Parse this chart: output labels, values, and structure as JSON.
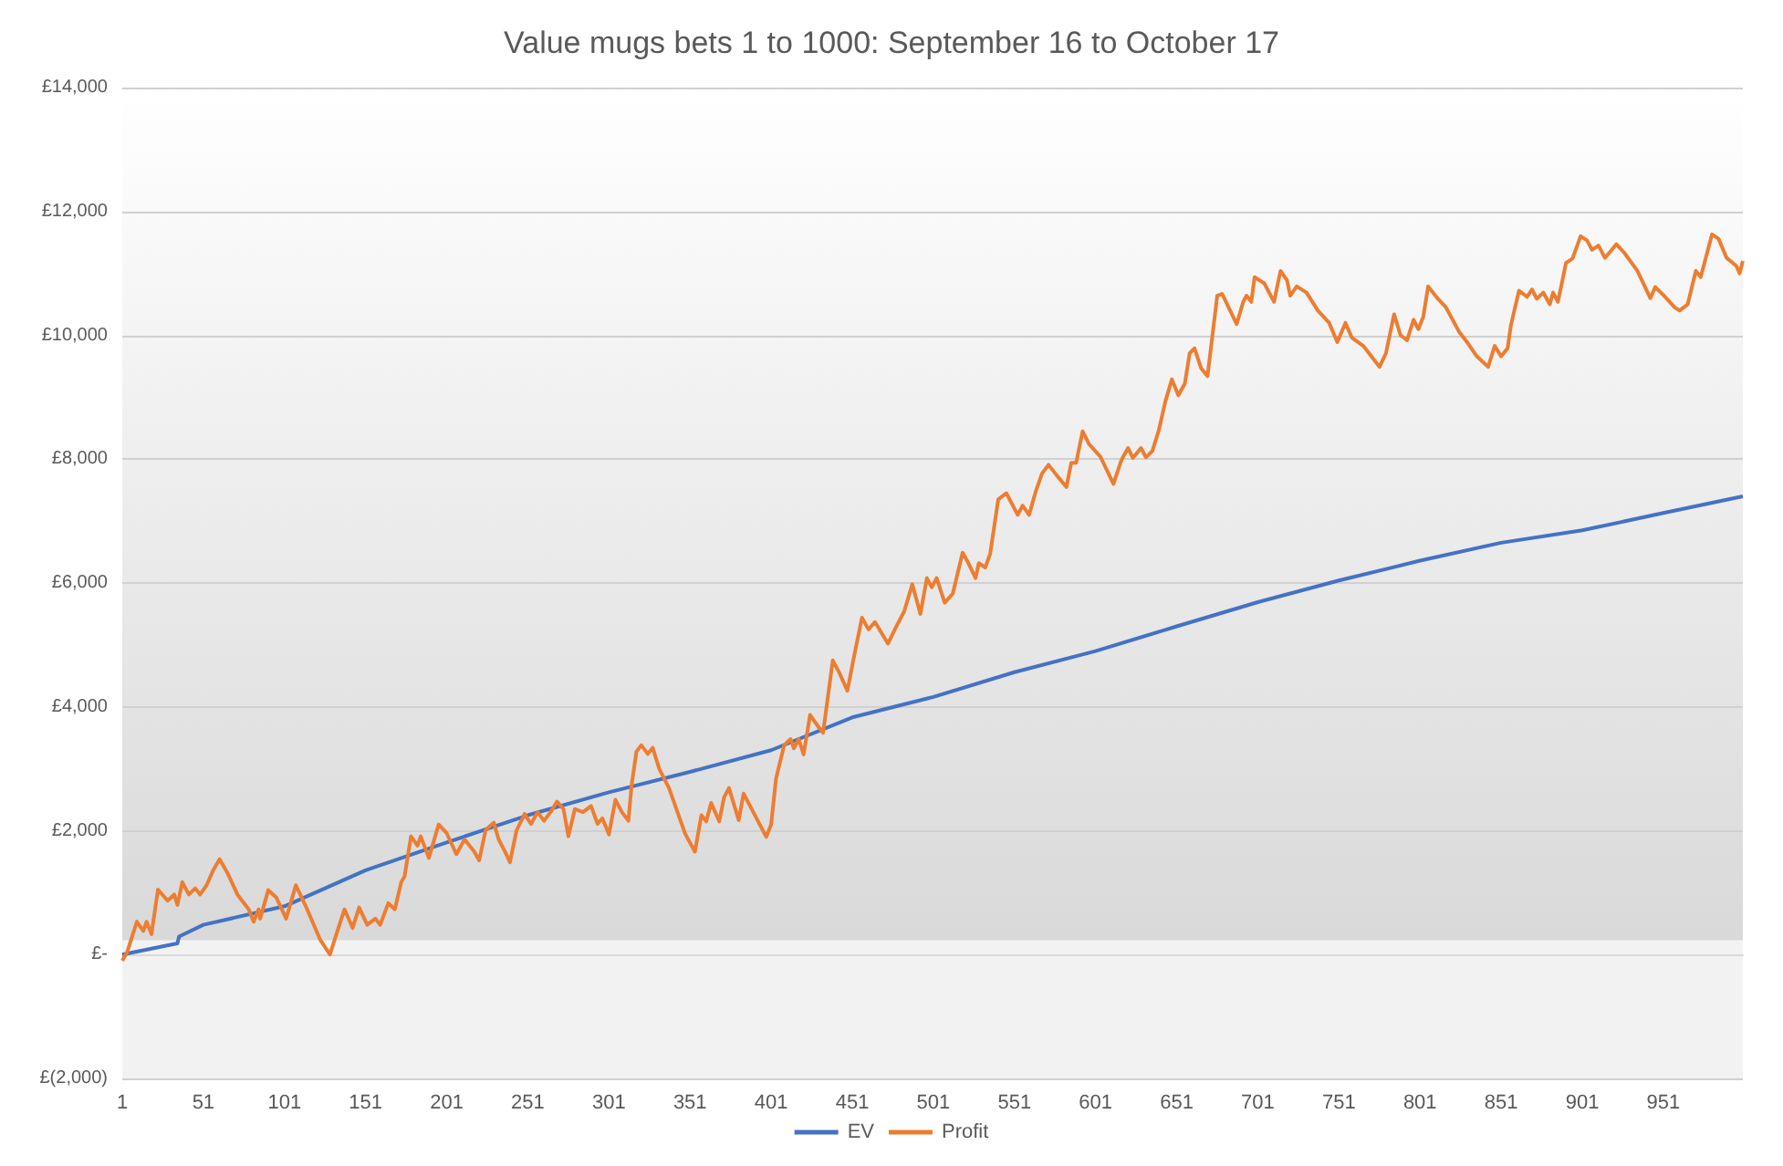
{
  "chart_data": {
    "type": "line",
    "title": "Value mugs bets 1 to 1000: September 16 to October 17",
    "xlim": [
      1,
      1000
    ],
    "xticks": [
      1,
      51,
      101,
      151,
      201,
      251,
      301,
      351,
      401,
      451,
      501,
      551,
      601,
      651,
      701,
      751,
      801,
      851,
      901,
      951
    ],
    "ylim": [
      -2000,
      14000
    ],
    "yticks": [
      {
        "value": -2000,
        "label": "£(2,000)"
      },
      {
        "value": 0,
        "label": "£-"
      },
      {
        "value": 2000,
        "label": "£2,000"
      },
      {
        "value": 4000,
        "label": "£4,000"
      },
      {
        "value": 6000,
        "label": "£6,000"
      },
      {
        "value": 8000,
        "label": "£8,000"
      },
      {
        "value": 10000,
        "label": "£10,000"
      },
      {
        "value": 12000,
        "label": "£12,000"
      },
      {
        "value": 14000,
        "label": "£14,000"
      }
    ],
    "grid": "y",
    "legend": "bottom",
    "marker": "none",
    "line_style": "solid",
    "series": [
      {
        "name": "EV",
        "color": "#4472c4",
        "x": [
          1,
          35,
          36,
          51,
          101,
          151,
          201,
          251,
          301,
          351,
          401,
          451,
          501,
          551,
          601,
          651,
          701,
          751,
          801,
          851,
          901,
          951,
          1000
        ],
        "values": [
          0,
          180,
          290,
          480,
          780,
          1360,
          1810,
          2250,
          2620,
          2950,
          3300,
          3830,
          4160,
          4560,
          4900,
          5300,
          5690,
          6040,
          6360,
          6650,
          6850,
          7130,
          7400
        ]
      },
      {
        "name": "Profit",
        "color": "#ed7d31",
        "x": [
          1,
          4,
          10,
          14,
          16,
          19,
          23,
          29,
          33,
          35,
          38,
          42,
          46,
          49,
          53,
          57,
          61,
          66,
          72,
          79,
          82,
          85,
          86,
          91,
          96,
          102,
          108,
          115,
          123,
          129,
          133,
          138,
          143,
          147,
          152,
          157,
          160,
          165,
          169,
          173,
          175,
          179,
          183,
          185,
          190,
          196,
          201,
          207,
          212,
          218,
          221,
          225,
          230,
          233,
          237,
          240,
          244,
          249,
          253,
          257,
          261,
          265,
          269,
          273,
          276,
          280,
          285,
          290,
          294,
          297,
          301,
          305,
          309,
          313,
          315,
          318,
          321,
          325,
          328,
          332,
          338,
          348,
          354,
          358,
          361,
          364,
          369,
          372,
          375,
          381,
          384,
          390,
          393,
          398,
          401,
          404,
          409,
          413,
          415,
          418,
          421,
          425,
          430,
          433,
          439,
          443,
          448,
          452,
          457,
          461,
          465,
          473,
          478,
          483,
          488,
          493,
          497,
          500,
          503,
          508,
          513,
          519,
          522,
          527,
          529,
          533,
          536,
          541,
          546,
          549,
          553,
          556,
          560,
          564,
          568,
          572,
          577,
          583,
          586,
          589,
          593,
          597,
          604,
          612,
          617,
          621,
          624,
          629,
          632,
          636,
          640,
          644,
          648,
          652,
          656,
          659,
          662,
          666,
          670,
          676,
          679,
          683,
          688,
          692,
          694,
          697,
          699,
          705,
          711,
          715,
          719,
          721,
          725,
          731,
          738,
          745,
          750,
          755,
          759,
          766,
          771,
          776,
          780,
          785,
          789,
          793,
          797,
          800,
          803,
          806,
          812,
          817,
          825,
          830,
          836,
          843,
          847,
          851,
          855,
          857,
          862,
          867,
          870,
          873,
          877,
          881,
          883,
          886,
          891,
          895,
          900,
          904,
          907,
          911,
          915,
          922,
          927,
          935,
          943,
          946,
          951,
          958,
          961,
          966,
          971,
          974,
          981,
          985,
          990,
          996,
          998,
          1000
        ],
        "values": [
          -100,
          40,
          530,
          380,
          530,
          330,
          1050,
          870,
          970,
          800,
          1170,
          970,
          1070,
          970,
          1120,
          1360,
          1540,
          1310,
          970,
          730,
          530,
          730,
          580,
          1040,
          920,
          580,
          1120,
          730,
          240,
          0,
          330,
          730,
          430,
          760,
          480,
          580,
          480,
          830,
          730,
          1170,
          1260,
          1910,
          1760,
          1910,
          1560,
          2100,
          1960,
          1620,
          1860,
          1660,
          1520,
          2010,
          2130,
          1860,
          1660,
          1490,
          2000,
          2270,
          2110,
          2300,
          2160,
          2300,
          2470,
          2350,
          1910,
          2350,
          2300,
          2400,
          2110,
          2200,
          1940,
          2500,
          2300,
          2160,
          2740,
          3280,
          3380,
          3240,
          3340,
          3000,
          2690,
          1950,
          1660,
          2250,
          2150,
          2450,
          2150,
          2540,
          2690,
          2170,
          2600,
          2300,
          2150,
          1900,
          2100,
          2840,
          3380,
          3480,
          3330,
          3480,
          3230,
          3870,
          3680,
          3580,
          4750,
          4550,
          4260,
          4800,
          5440,
          5250,
          5370,
          5020,
          5290,
          5540,
          5980,
          5500,
          6080,
          5930,
          6080,
          5680,
          5830,
          6490,
          6350,
          6080,
          6320,
          6250,
          6470,
          7350,
          7450,
          7300,
          7100,
          7250,
          7100,
          7470,
          7770,
          7910,
          7740,
          7550,
          7940,
          7940,
          8450,
          8240,
          8040,
          7600,
          7990,
          8180,
          8020,
          8180,
          8030,
          8130,
          8470,
          8930,
          9290,
          9030,
          9220,
          9710,
          9790,
          9470,
          9340,
          10640,
          10670,
          10450,
          10180,
          10540,
          10640,
          10540,
          10940,
          10840,
          10540,
          11040,
          10890,
          10640,
          10790,
          10690,
          10400,
          10200,
          9890,
          10200,
          9960,
          9830,
          9660,
          9490,
          9710,
          10340,
          10000,
          9920,
          10250,
          10100,
          10300,
          10790,
          10590,
          10450,
          10060,
          9890,
          9660,
          9490,
          9830,
          9660,
          9790,
          10160,
          10720,
          10620,
          10740,
          10590,
          10690,
          10500,
          10690,
          10540,
          11170,
          11240,
          11600,
          11530,
          11380,
          11450,
          11250,
          11470,
          11330,
          11040,
          10600,
          10780,
          10650,
          10450,
          10400,
          10500,
          11040,
          10940,
          11630,
          11560,
          11250,
          11120,
          11000,
          11200
        ]
      }
    ]
  }
}
